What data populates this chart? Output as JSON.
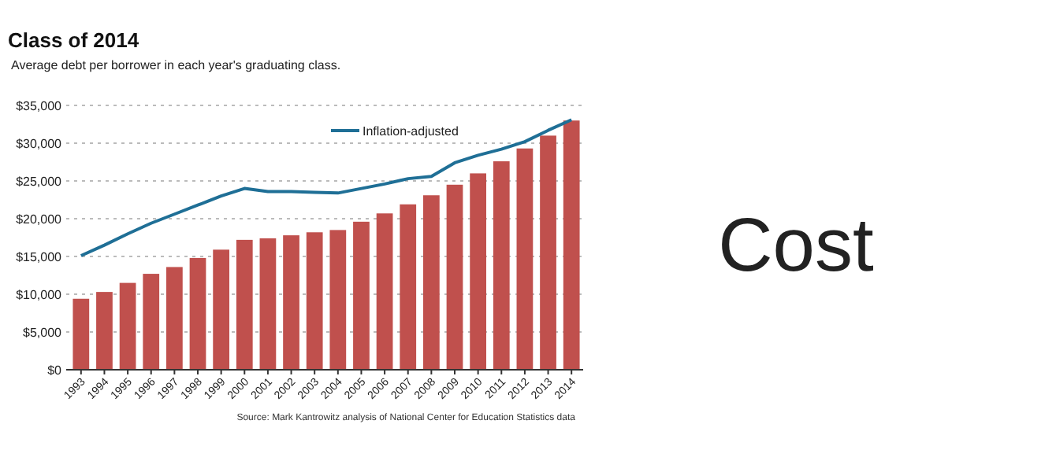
{
  "chart_data": {
    "type": "bar",
    "title": "Class of 2014",
    "subtitle": "Average debt per borrower in each year's graduating class.",
    "categories": [
      "1993",
      "1994",
      "1995",
      "1996",
      "1997",
      "1998",
      "1999",
      "2000",
      "2001",
      "2002",
      "2003",
      "2004",
      "2005",
      "2006",
      "2007",
      "2008",
      "2009",
      "2010",
      "2011",
      "2012",
      "2013",
      "2014"
    ],
    "series": [
      {
        "color": "#c0504d",
        "values": [
          9400,
          10300,
          11500,
          12700,
          13600,
          14800,
          15900,
          17200,
          17400,
          17800,
          18200,
          18500,
          19600,
          20700,
          21900,
          23100,
          24500,
          26000,
          27600,
          29300,
          31000,
          33000
        ]
      },
      {
        "type": "line",
        "name": "Inflation-adjusted",
        "color": "#1f6f96",
        "values": [
          15100,
          16500,
          18000,
          19400,
          20600,
          21800,
          23000,
          24000,
          23600,
          23600,
          23500,
          23400,
          24000,
          24600,
          25300,
          25600,
          27400,
          28400,
          29200,
          30200,
          31700,
          33100
        ]
      }
    ],
    "ylim": [
      0,
      35000
    ],
    "yticks": [
      {
        "value": 0,
        "label": "$0"
      },
      {
        "value": 5000,
        "label": "$5,000"
      },
      {
        "value": 10000,
        "label": "$10,000"
      },
      {
        "value": 15000,
        "label": "$15,000"
      },
      {
        "value": 20000,
        "label": "$20,000"
      },
      {
        "value": 25000,
        "label": "$25,000"
      },
      {
        "value": 30000,
        "label": "$30,000"
      },
      {
        "value": 35000,
        "label": "$35,000"
      }
    ],
    "grid": "y",
    "legend": "top right",
    "line_style": "solid",
    "marker": "none",
    "annotations": [
      "Source: Mark Kantrowitz analysis of National Center for Education Statistics data",
      "Cost"
    ]
  }
}
